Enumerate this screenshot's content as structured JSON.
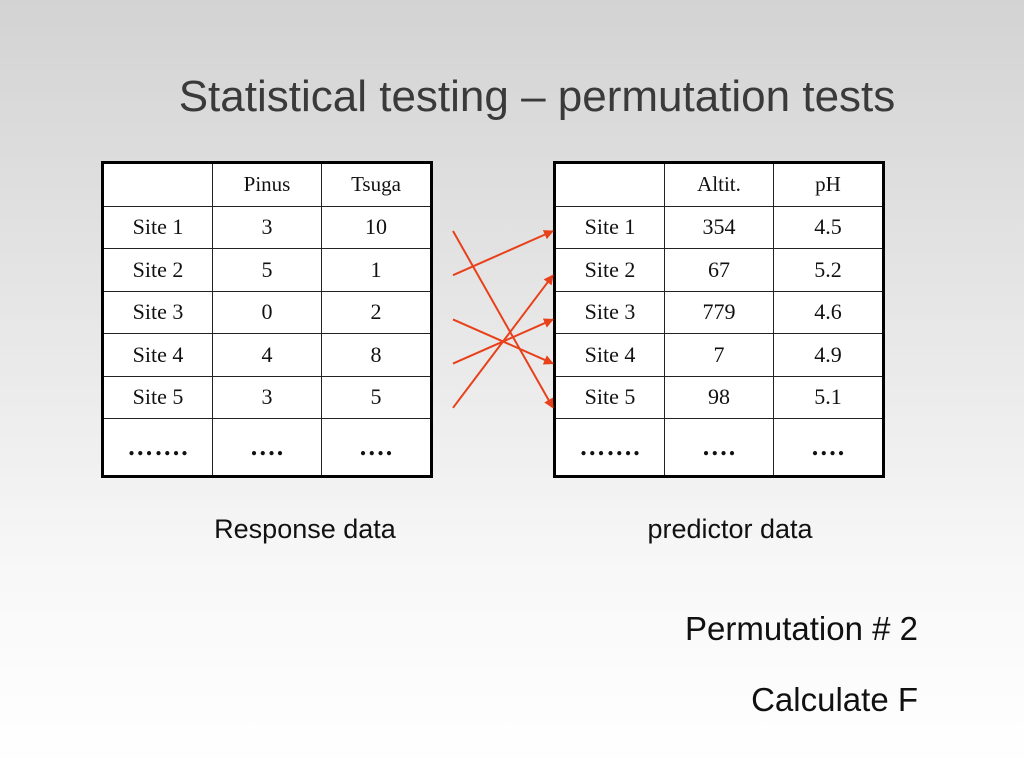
{
  "title": "Statistical testing – permutation tests",
  "response_table": {
    "headers": [
      "",
      "Pinus",
      "Tsuga"
    ],
    "rows": [
      [
        "Site 1",
        "3",
        "10"
      ],
      [
        "Site 2",
        "5",
        "1"
      ],
      [
        "Site 3",
        "0",
        "2"
      ],
      [
        "Site 4",
        "4",
        "8"
      ],
      [
        "Site 5",
        "3",
        "5"
      ],
      [
        "…….",
        "….",
        "…."
      ]
    ]
  },
  "predictor_table": {
    "headers": [
      "",
      "Altit.",
      "pH"
    ],
    "rows": [
      [
        "Site 1",
        "354",
        "4.5"
      ],
      [
        "Site 2",
        "67",
        "5.2"
      ],
      [
        "Site 3",
        "779",
        "4.6"
      ],
      [
        "Site 4",
        "7",
        "4.9"
      ],
      [
        "Site 5",
        "98",
        "5.1"
      ],
      [
        "…….",
        "….",
        "…."
      ]
    ]
  },
  "response_caption": "Response data",
  "predictor_caption": "predictor data",
  "permutation_label": "Permutation # 2",
  "calculate_label": "Calculate F",
  "arrow_color": "#e8401a",
  "permutation_mapping": [
    {
      "from": "Site 1",
      "to": "Site 5"
    },
    {
      "from": "Site 2",
      "to": "Site 1"
    },
    {
      "from": "Site 3",
      "to": "Site 4"
    },
    {
      "from": "Site 4",
      "to": "Site 3"
    },
    {
      "from": "Site 5",
      "to": "Site 2"
    }
  ]
}
